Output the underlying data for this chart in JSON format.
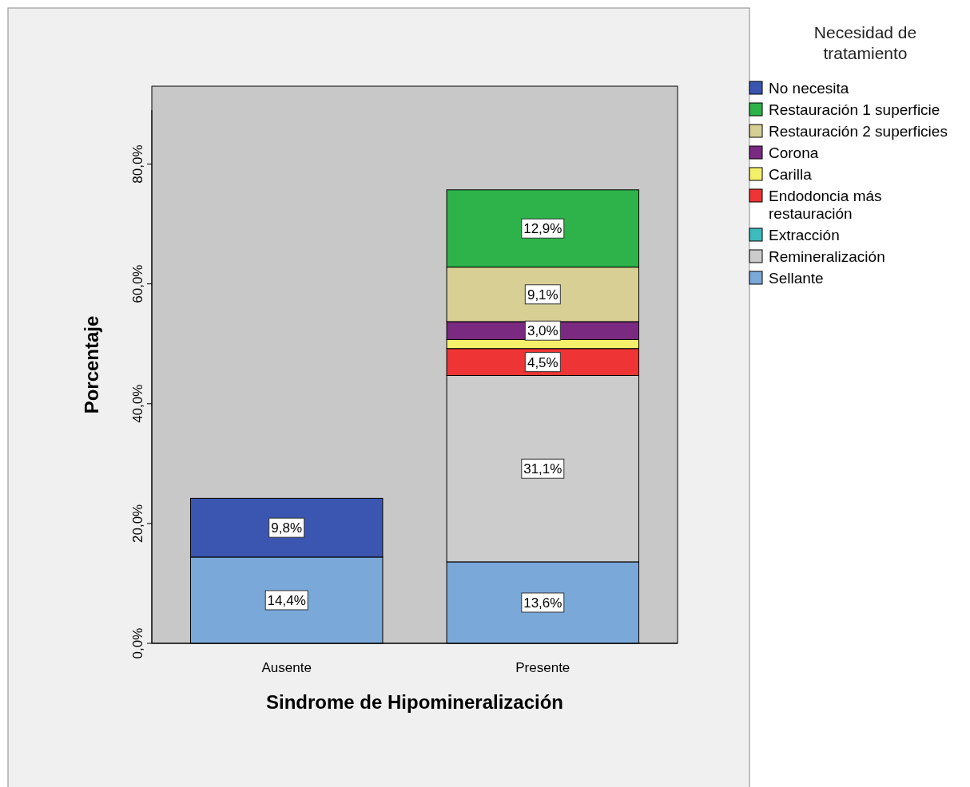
{
  "chart_data": {
    "type": "bar",
    "stacked": true,
    "xlabel": "Sindrome de Hipomineralización",
    "ylabel": "Porcentaje",
    "legend_title": "Necesidad de tratamiento",
    "legend": "right",
    "categories": [
      "Ausente",
      "Presente"
    ],
    "ylim": [
      0,
      89
    ],
    "yticks": [
      {
        "value": 0,
        "label": "0,0%"
      },
      {
        "value": 20,
        "label": "20,0%"
      },
      {
        "value": 40,
        "label": "40,0%"
      },
      {
        "value": 60,
        "label": "60,0%"
      },
      {
        "value": 80,
        "label": "80,0%"
      }
    ],
    "series": [
      {
        "name": "Sellante",
        "color": "#7aa8d8",
        "values": [
          14.4,
          13.6
        ],
        "value_labels": [
          "14,4%",
          "13,6%"
        ]
      },
      {
        "name": "Remineralización",
        "color": "#cccccc",
        "values": [
          null,
          31.1
        ],
        "value_labels": [
          null,
          "31,1%"
        ]
      },
      {
        "name": "Extracción",
        "color": "#3cbcbc",
        "values": [
          null,
          null
        ],
        "value_labels": [
          null,
          null
        ]
      },
      {
        "name": "Endodoncia más restauración",
        "color": "#ee3434",
        "values": [
          null,
          4.5
        ],
        "value_labels": [
          null,
          "4,5%"
        ]
      },
      {
        "name": "Carilla",
        "color": "#f5f06a",
        "values": [
          null,
          1.5
        ],
        "value_labels": [
          null,
          null
        ]
      },
      {
        "name": "Corona",
        "color": "#7a2a80",
        "values": [
          null,
          3.0
        ],
        "value_labels": [
          null,
          "3,0%"
        ]
      },
      {
        "name": "Restauración 2 superficies",
        "color": "#d8cf95",
        "values": [
          null,
          9.1
        ],
        "value_labels": [
          null,
          "9,1%"
        ]
      },
      {
        "name": "Restauración 1 superficie",
        "color": "#2db34a",
        "values": [
          null,
          12.9
        ],
        "value_labels": [
          null,
          "12,9%"
        ]
      },
      {
        "name": "No necesita",
        "color": "#3a56b0",
        "values": [
          9.8,
          null
        ],
        "value_labels": [
          "9,8%",
          null
        ]
      }
    ]
  }
}
